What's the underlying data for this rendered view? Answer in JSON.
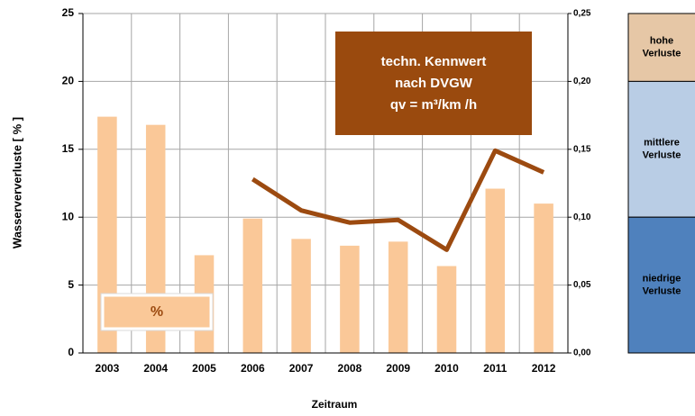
{
  "chart_data": {
    "type": "bar_line",
    "categories": [
      "2003",
      "2004",
      "2005",
      "2006",
      "2007",
      "2008",
      "2009",
      "2010",
      "2011",
      "2012"
    ],
    "series": [
      {
        "name": "%",
        "type": "bar",
        "color": "#FAC898",
        "values": [
          17.4,
          16.8,
          7.2,
          9.9,
          8.4,
          7.9,
          8.2,
          6.4,
          12.1,
          11.0
        ]
      },
      {
        "name": [
          "techn. Kennwert",
          "nach DVGW",
          "qv = m³/km /h"
        ],
        "type": "line",
        "axis": "y2",
        "color": "#9C4A10",
        "values": [
          null,
          null,
          null,
          0.128,
          0.105,
          0.096,
          0.098,
          0.076,
          0.149,
          0.133
        ]
      }
    ],
    "ylim": [
      0,
      25
    ],
    "yticks": [
      0,
      5,
      10,
      15,
      20,
      25
    ],
    "y2lim": [
      0,
      0.25
    ],
    "y2ticks": [
      {
        "value": 0,
        "label": "0,00"
      },
      {
        "value": 0.05,
        "label": "0,05"
      },
      {
        "value": 0.1,
        "label": "0,10"
      },
      {
        "value": 0.15,
        "label": "0,15"
      },
      {
        "value": 0.2,
        "label": "0,20"
      },
      {
        "value": 0.25,
        "label": "0,25"
      }
    ],
    "y_label": "Wasserververluste [ % ]",
    "x_label": "Zeitraum",
    "grid": true,
    "bands": [
      {
        "label": [
          "hohe",
          "Verluste"
        ],
        "range": [
          0.2,
          0.25
        ],
        "color": "#E6C7A6"
      },
      {
        "label": [
          "mittlere",
          "Verluste"
        ],
        "range": [
          0.1,
          0.2
        ],
        "color": "#B9CDE5"
      },
      {
        "label": [
          "niedrige",
          "Verluste"
        ],
        "range": [
          0,
          0.1
        ],
        "color": "#4F81BD"
      }
    ]
  }
}
